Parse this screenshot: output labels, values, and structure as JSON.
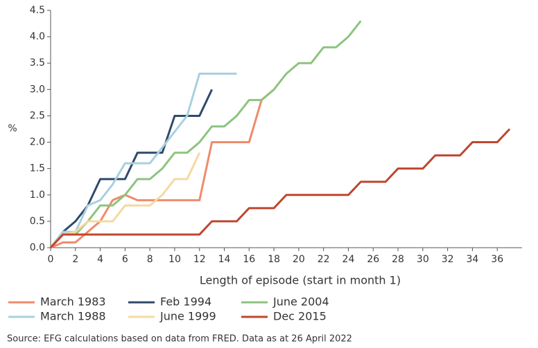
{
  "chart_data": {
    "type": "line",
    "ylabel": "%",
    "xlabel": "Length of episode (start in month 1)",
    "source": "Source: EFG calculations based on data from FRED. Data as at 26 April 2022",
    "x": [
      0,
      1,
      2,
      3,
      4,
      5,
      6,
      7,
      8,
      9,
      10,
      11,
      12,
      13,
      14,
      15,
      16,
      17,
      18,
      19,
      20,
      21,
      22,
      23,
      24,
      25,
      26,
      27,
      28,
      29,
      30,
      31,
      32,
      33,
      34,
      35,
      36,
      37
    ],
    "xlim": [
      0,
      38
    ],
    "xticks": [
      0,
      2,
      4,
      6,
      8,
      10,
      12,
      14,
      16,
      18,
      20,
      22,
      24,
      26,
      28,
      30,
      32,
      34,
      36
    ],
    "ylim": [
      0,
      4.5
    ],
    "yticks": [
      {
        "value": 0,
        "label": "0.0"
      },
      {
        "value": 0.5,
        "label": "0.5"
      },
      {
        "value": 1,
        "label": "1.0"
      },
      {
        "value": 1.5,
        "label": "1.5"
      },
      {
        "value": 2,
        "label": "2.0"
      },
      {
        "value": 2.5,
        "label": "2.5"
      },
      {
        "value": 3,
        "label": "3.0"
      },
      {
        "value": 3.5,
        "label": "3.5"
      },
      {
        "value": 4,
        "label": "4.0"
      },
      {
        "value": 4.5,
        "label": "4.5"
      }
    ],
    "series": [
      {
        "name": "March 1983",
        "color": "#f08a6a",
        "values": [
          0,
          0.1,
          0.1,
          0.3,
          0.5,
          0.9,
          1.0,
          0.9,
          0.9,
          0.9,
          0.9,
          0.9,
          0.9,
          2.0,
          2.0,
          2.0,
          2.0,
          2.8,
          3.0,
          null,
          null,
          null,
          null,
          null,
          null,
          null,
          null,
          null,
          null,
          null,
          null,
          null,
          null,
          null,
          null,
          null,
          null,
          null
        ]
      },
      {
        "name": "Feb 1994",
        "color": "#2e4a6b",
        "values": [
          0,
          0.3,
          0.5,
          0.8,
          1.3,
          1.3,
          1.3,
          1.8,
          1.8,
          1.8,
          2.5,
          2.5,
          2.5,
          3.0,
          null,
          null,
          null,
          null,
          null,
          null,
          null,
          null,
          null,
          null,
          null,
          null,
          null,
          null,
          null,
          null,
          null,
          null,
          null,
          null,
          null,
          null,
          null,
          null
        ]
      },
      {
        "name": "June 2004",
        "color": "#8cc47e",
        "values": [
          0,
          0.25,
          0.25,
          0.5,
          0.8,
          0.8,
          1.0,
          1.3,
          1.3,
          1.5,
          1.8,
          1.8,
          2.0,
          2.3,
          2.3,
          2.5,
          2.8,
          2.8,
          3.0,
          3.3,
          3.5,
          3.5,
          3.8,
          3.8,
          4.0,
          4.3,
          null,
          null,
          null,
          null,
          null,
          null,
          null,
          null,
          null,
          null,
          null,
          null
        ]
      },
      {
        "name": "March 1988",
        "color": "#a8d0e0",
        "values": [
          0,
          0.3,
          0.3,
          0.8,
          0.9,
          1.2,
          1.6,
          1.6,
          1.6,
          1.9,
          2.2,
          2.5,
          3.3,
          3.3,
          3.3,
          3.3,
          null,
          null,
          null,
          null,
          null,
          null,
          null,
          null,
          null,
          null,
          null,
          null,
          null,
          null,
          null,
          null,
          null,
          null,
          null,
          null,
          null,
          null
        ]
      },
      {
        "name": "June 1999",
        "color": "#f5d9a0",
        "values": [
          0,
          0.25,
          0.3,
          0.5,
          0.5,
          0.5,
          0.8,
          0.8,
          0.8,
          1.0,
          1.3,
          1.3,
          1.8,
          null,
          null,
          null,
          null,
          null,
          null,
          null,
          null,
          null,
          null,
          null,
          null,
          null,
          null,
          null,
          null,
          null,
          null,
          null,
          null,
          null,
          null,
          null,
          null,
          null
        ]
      },
      {
        "name": "Dec 2015",
        "color": "#c0452e",
        "values": [
          0,
          0.25,
          0.25,
          0.25,
          0.25,
          0.25,
          0.25,
          0.25,
          0.25,
          0.25,
          0.25,
          0.25,
          0.25,
          0.5,
          0.5,
          0.5,
          0.75,
          0.75,
          0.75,
          1.0,
          1.0,
          1.0,
          1.0,
          1.0,
          1.0,
          1.25,
          1.25,
          1.25,
          1.5,
          1.5,
          1.5,
          1.75,
          1.75,
          1.75,
          2.0,
          2.0,
          2.0,
          2.25
        ]
      }
    ]
  }
}
